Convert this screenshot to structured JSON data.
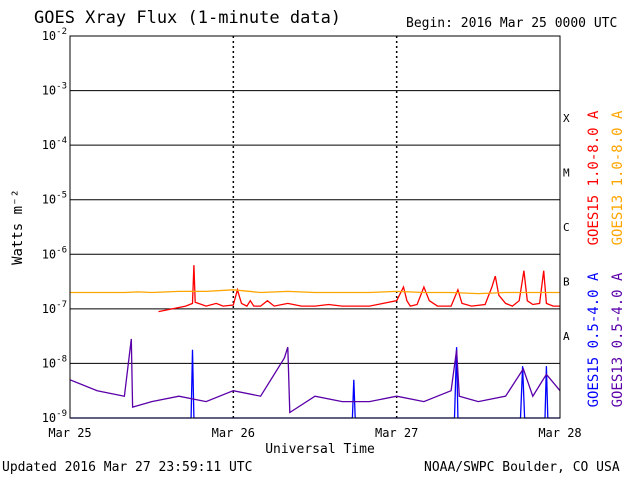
{
  "header": {
    "title": "GOES Xray Flux (1-minute data)",
    "begin": "Begin:  2016 Mar 25 0000 UTC"
  },
  "footer": {
    "updated": "Updated 2016 Mar 27 23:59:11 UTC",
    "credit": "NOAA/SWPC Boulder, CO USA"
  },
  "chart_data": {
    "type": "line",
    "title": "GOES Xray Flux (1-minute data)",
    "xlabel": "Universal Time",
    "ylabel": "Watts m⁻²",
    "yscale": "log",
    "ylim": [
      1e-09,
      0.01
    ],
    "xlim": [
      0,
      72
    ],
    "x_unit": "hours since 2016 Mar 25 0000 UTC",
    "xticks": [
      {
        "x": 0,
        "label": "Mar 25"
      },
      {
        "x": 24,
        "label": "Mar 26"
      },
      {
        "x": 48,
        "label": "Mar 27"
      },
      {
        "x": 72,
        "label": "Mar 28"
      }
    ],
    "yticks": [
      {
        "exp": -9,
        "label": "10",
        "sup": "-9"
      },
      {
        "exp": -8,
        "label": "10",
        "sup": "-8"
      },
      {
        "exp": -7,
        "label": "10",
        "sup": "-7"
      },
      {
        "exp": -6,
        "label": "10",
        "sup": "-6"
      },
      {
        "exp": -5,
        "label": "10",
        "sup": "-5"
      },
      {
        "exp": -4,
        "label": "10",
        "sup": "-4"
      },
      {
        "exp": -3,
        "label": "10",
        "sup": "-3"
      },
      {
        "exp": -2,
        "label": "10",
        "sup": "-2"
      }
    ],
    "flare_classes": [
      {
        "label": "X",
        "exp": -4
      },
      {
        "label": "M",
        "exp": -5
      },
      {
        "label": "C",
        "exp": -6
      },
      {
        "label": "B",
        "exp": -7
      },
      {
        "label": "A",
        "exp": -8
      }
    ],
    "grid": {
      "horizontal_lines": true,
      "vertical_day_lines": "dotted"
    },
    "legend": "right side, vertical",
    "series": [
      {
        "name": "GOES15 1.0-8.0 A",
        "color": "#ff0000",
        "points": [
          [
            13,
            -7.05
          ],
          [
            17,
            -6.95
          ],
          [
            18,
            -6.9
          ],
          [
            18.2,
            -6.2
          ],
          [
            18.4,
            -6.88
          ],
          [
            20,
            -6.95
          ],
          [
            21.5,
            -6.9
          ],
          [
            22.5,
            -6.95
          ],
          [
            24,
            -6.93
          ],
          [
            24.6,
            -6.65
          ],
          [
            25.2,
            -6.9
          ],
          [
            26,
            -6.95
          ],
          [
            26.5,
            -6.85
          ],
          [
            27,
            -6.95
          ],
          [
            28,
            -6.95
          ],
          [
            29,
            -6.85
          ],
          [
            30,
            -6.95
          ],
          [
            32,
            -6.9
          ],
          [
            34,
            -6.95
          ],
          [
            36,
            -6.95
          ],
          [
            38,
            -6.92
          ],
          [
            40,
            -6.95
          ],
          [
            44,
            -6.95
          ],
          [
            46,
            -6.9
          ],
          [
            48,
            -6.85
          ],
          [
            49,
            -6.6
          ],
          [
            49.5,
            -6.85
          ],
          [
            50,
            -6.95
          ],
          [
            51,
            -6.92
          ],
          [
            52,
            -6.6
          ],
          [
            52.8,
            -6.85
          ],
          [
            54,
            -6.95
          ],
          [
            56,
            -6.95
          ],
          [
            57,
            -6.65
          ],
          [
            57.6,
            -6.9
          ],
          [
            59,
            -6.95
          ],
          [
            61,
            -6.92
          ],
          [
            62,
            -6.6
          ],
          [
            62.5,
            -6.4
          ],
          [
            63,
            -6.75
          ],
          [
            64,
            -6.9
          ],
          [
            65,
            -6.95
          ],
          [
            66,
            -6.85
          ],
          [
            66.7,
            -6.3
          ],
          [
            67.2,
            -6.85
          ],
          [
            68,
            -6.92
          ],
          [
            69,
            -6.9
          ],
          [
            69.6,
            -6.3
          ],
          [
            70,
            -6.9
          ],
          [
            71,
            -6.95
          ],
          [
            72,
            -6.95
          ]
        ]
      },
      {
        "name": "GOES13 1.0-8.0 A",
        "color": "#ffa500",
        "points": [
          [
            0,
            -6.7
          ],
          [
            4,
            -6.7
          ],
          [
            8,
            -6.7
          ],
          [
            10,
            -6.69
          ],
          [
            12,
            -6.7
          ],
          [
            16,
            -6.68
          ],
          [
            20,
            -6.68
          ],
          [
            24,
            -6.65
          ],
          [
            28,
            -6.7
          ],
          [
            32,
            -6.68
          ],
          [
            36,
            -6.7
          ],
          [
            40,
            -6.7
          ],
          [
            44,
            -6.7
          ],
          [
            48,
            -6.68
          ],
          [
            52,
            -6.7
          ],
          [
            56,
            -6.7
          ],
          [
            60,
            -6.72
          ],
          [
            64,
            -6.7
          ],
          [
            68,
            -6.7
          ],
          [
            72,
            -6.7
          ]
        ]
      },
      {
        "name": "GOES15 0.5-4.0 A",
        "color": "#0000ff",
        "points": [
          [
            0,
            -9
          ],
          [
            17.8,
            -9
          ],
          [
            18,
            -7.75
          ],
          [
            18.2,
            -9
          ],
          [
            41.5,
            -9
          ],
          [
            41.7,
            -8.3
          ],
          [
            41.9,
            -9
          ],
          [
            56.5,
            -9
          ],
          [
            56.8,
            -7.7
          ],
          [
            57,
            -9
          ],
          [
            66.2,
            -9
          ],
          [
            66.5,
            -8.05
          ],
          [
            66.8,
            -9
          ],
          [
            69.8,
            -9
          ],
          [
            70,
            -8.05
          ],
          [
            70.2,
            -9
          ],
          [
            72,
            -9
          ]
        ]
      },
      {
        "name": "GOES13 0.5-4.0 A",
        "color": "#5a00a8",
        "points": [
          [
            0,
            -8.3
          ],
          [
            4,
            -8.5
          ],
          [
            8,
            -8.6
          ],
          [
            9,
            -7.55
          ],
          [
            9.2,
            -8.8
          ],
          [
            12,
            -8.7
          ],
          [
            16,
            -8.6
          ],
          [
            20,
            -8.7
          ],
          [
            24,
            -8.5
          ],
          [
            28,
            -8.6
          ],
          [
            31.5,
            -7.9
          ],
          [
            32,
            -7.7
          ],
          [
            32.3,
            -8.9
          ],
          [
            36,
            -8.6
          ],
          [
            40,
            -8.7
          ],
          [
            44,
            -8.7
          ],
          [
            48,
            -8.6
          ],
          [
            52,
            -8.7
          ],
          [
            56,
            -8.5
          ],
          [
            56.8,
            -7.75
          ],
          [
            57.2,
            -8.6
          ],
          [
            60,
            -8.7
          ],
          [
            64,
            -8.6
          ],
          [
            66.6,
            -8.1
          ],
          [
            68,
            -8.6
          ],
          [
            70,
            -8.2
          ],
          [
            72,
            -8.5
          ]
        ]
      }
    ]
  }
}
